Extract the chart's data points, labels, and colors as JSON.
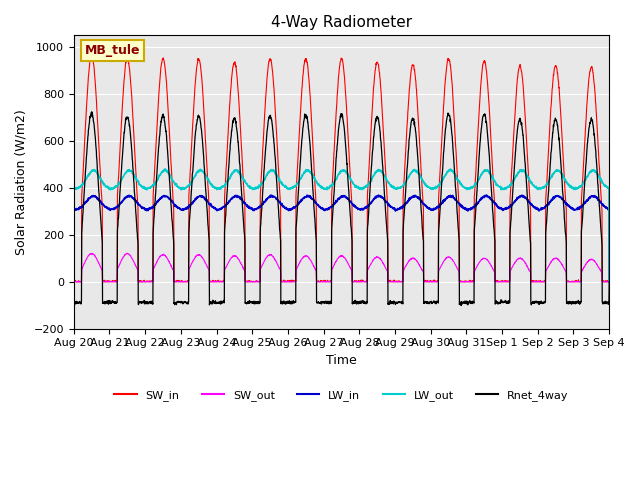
{
  "title": "4-Way Radiometer",
  "xlabel": "Time",
  "ylabel": "Solar Radiation (W/m2)",
  "station_label": "MB_tule",
  "ylim": [
    -200,
    1050
  ],
  "background_color": "#e8e8e8",
  "colors": {
    "SW_in": "#ff0000",
    "SW_out": "#ff00ff",
    "LW_in": "#0000cc",
    "LW_out": "#00cccc",
    "Rnet_4way": "#000000"
  },
  "num_days": 15,
  "SW_in_peaks": [
    965,
    950,
    950,
    950,
    935,
    950,
    950,
    950,
    935,
    925,
    950,
    940,
    920,
    920,
    915
  ],
  "SW_out_peaks": [
    120,
    120,
    115,
    115,
    110,
    115,
    110,
    110,
    105,
    100,
    105,
    100,
    100,
    100,
    95
  ],
  "LW_in_base": 305,
  "LW_in_day_bump": 60,
  "LW_out_base": 395,
  "LW_out_day_bump": 80,
  "Rnet_peak": 730,
  "points_per_day": 144,
  "tick_labels": [
    "Aug 20",
    "Aug 21",
    "Aug 22",
    "Aug 23",
    "Aug 24",
    "Aug 25",
    "Aug 26",
    "Aug 27",
    "Aug 28",
    "Aug 29",
    "Aug 30",
    "Aug 31",
    "Sep 1",
    "Sep 2",
    "Sep 3",
    "Sep 4"
  ]
}
